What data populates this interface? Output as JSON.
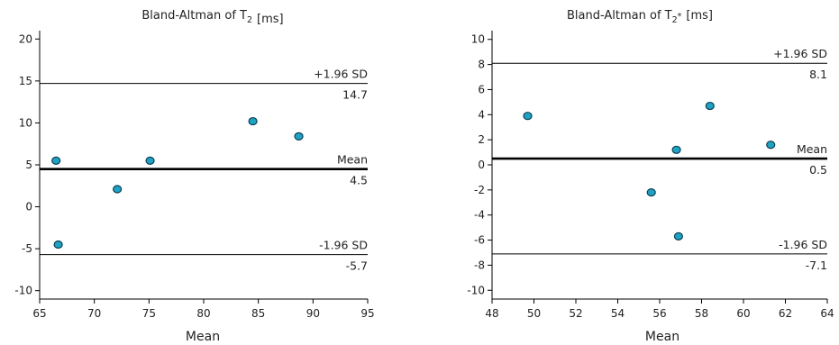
{
  "chart_data": [
    {
      "type": "scatter",
      "title_main": "Bland-Altman of T",
      "title_sub": "2",
      "title_sup": "",
      "title_unit": "[ms]",
      "xlabel": "Mean",
      "ylabel": "",
      "xlim": [
        65,
        95
      ],
      "ylim": [
        -11,
        21
      ],
      "xticks": [
        65,
        70,
        75,
        80,
        85,
        90,
        95
      ],
      "yticks": [
        -10,
        -5,
        0,
        5,
        10,
        15,
        20
      ],
      "grid": false,
      "points": [
        {
          "x": 66.5,
          "y": 5.5
        },
        {
          "x": 66.7,
          "y": -4.5
        },
        {
          "x": 72.1,
          "y": 2.1
        },
        {
          "x": 75.1,
          "y": 5.5
        },
        {
          "x": 84.5,
          "y": 10.2
        },
        {
          "x": 88.7,
          "y": 8.4
        }
      ],
      "reference_lines": [
        {
          "key": "upper",
          "label": "+1.96 SD",
          "value": 14.7,
          "value_label": "14.7"
        },
        {
          "key": "mean",
          "label": "Mean",
          "value": 4.5,
          "value_label": "4.5"
        },
        {
          "key": "lower",
          "label": "-1.96 SD",
          "value": -5.7,
          "value_label": "-5.7"
        }
      ]
    },
    {
      "type": "scatter",
      "title_main": "Bland-Altman of T",
      "title_sub": "2",
      "title_sup": "*",
      "title_unit": "[ms]",
      "xlabel": "Mean",
      "ylabel": "",
      "xlim": [
        48,
        64
      ],
      "ylim": [
        -10.7,
        10.7
      ],
      "xticks": [
        48,
        50,
        52,
        54,
        56,
        58,
        60,
        62,
        64
      ],
      "yticks": [
        -10,
        -8,
        -6,
        -4,
        -2,
        0,
        2,
        4,
        6,
        8,
        10
      ],
      "grid": false,
      "points": [
        {
          "x": 49.7,
          "y": 3.9
        },
        {
          "x": 55.6,
          "y": -2.2
        },
        {
          "x": 56.8,
          "y": 1.2
        },
        {
          "x": 56.9,
          "y": -5.7
        },
        {
          "x": 58.4,
          "y": 4.7
        },
        {
          "x": 61.3,
          "y": 1.6
        }
      ],
      "reference_lines": [
        {
          "key": "upper",
          "label": "+1.96 SD",
          "value": 8.1,
          "value_label": "8.1"
        },
        {
          "key": "mean",
          "label": "Mean",
          "value": 0.5,
          "value_label": "0.5"
        },
        {
          "key": "lower",
          "label": "-1.96 SD",
          "value": -7.1,
          "value_label": "-7.1"
        }
      ]
    }
  ]
}
